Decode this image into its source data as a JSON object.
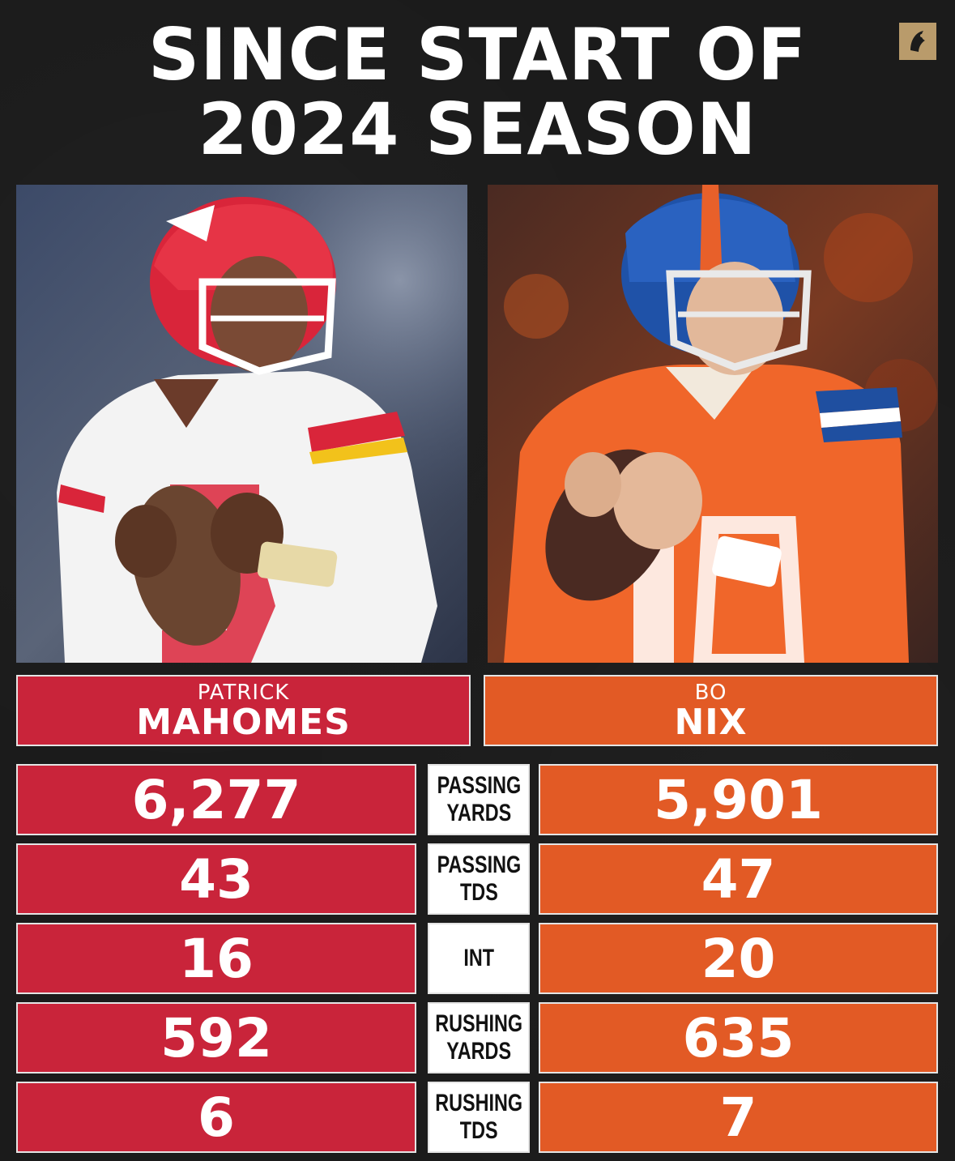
{
  "title": {
    "line1": "SINCE START OF",
    "line2": "2024 SEASON"
  },
  "colors": {
    "background": "#1b1b1b",
    "chiefs_red": "#c9243a",
    "broncos_orange": "#e25a25",
    "label_bg": "#ffffff",
    "logo_gold": "#b99b6b"
  },
  "logo": {
    "icon": "brand-logo-icon"
  },
  "players": {
    "left": {
      "first": "PATRICK",
      "last": "MAHOMES",
      "photo": "mahomes-photo"
    },
    "right": {
      "first": "BO",
      "last": "NIX",
      "photo": "nix-photo"
    }
  },
  "stats": [
    {
      "label": "PASSING\nYARDS",
      "left": "6,277",
      "right": "5,901"
    },
    {
      "label": "PASSING\nTDS",
      "left": "43",
      "right": "47"
    },
    {
      "label": "INT",
      "left": "16",
      "right": "20"
    },
    {
      "label": "RUSHING\nYARDS",
      "left": "592",
      "right": "635"
    },
    {
      "label": "RUSHING\nTDS",
      "left": "6",
      "right": "7"
    }
  ]
}
